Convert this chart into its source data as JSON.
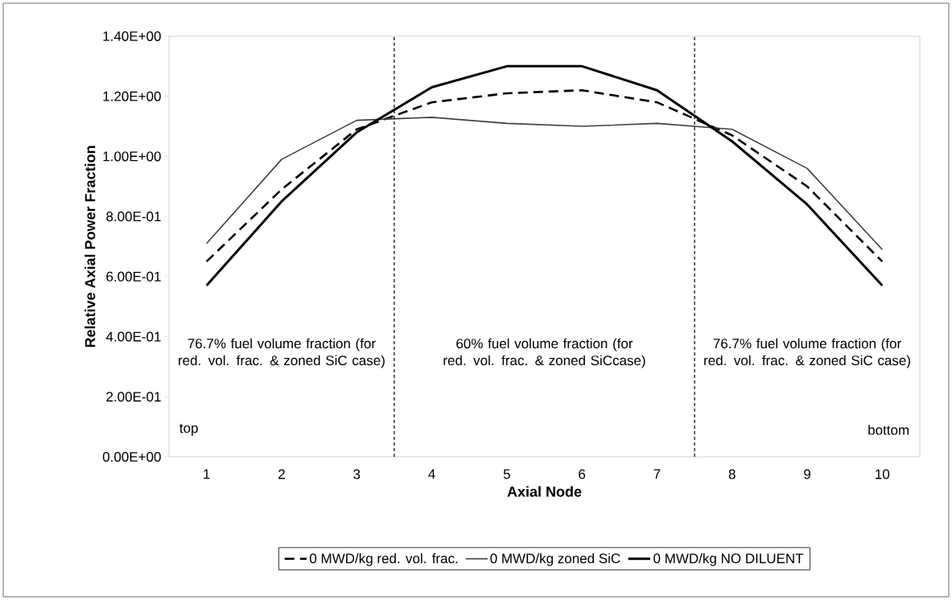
{
  "chart_data": {
    "type": "line",
    "xlabel": "Axial Node",
    "ylabel": "Relative Axial Power Fraction",
    "x": [
      1,
      2,
      3,
      4,
      5,
      6,
      7,
      8,
      9,
      10
    ],
    "xlim": [
      0.5,
      10.5
    ],
    "xticks": [
      1,
      2,
      3,
      4,
      5,
      6,
      7,
      8,
      9,
      10
    ],
    "ylim": [
      0,
      1.4
    ],
    "yticks": [
      {
        "value": 0,
        "label": "0.00E+00"
      },
      {
        "value": 0.2,
        "label": "2.00E-01"
      },
      {
        "value": 0.4,
        "label": "4.00E-01"
      },
      {
        "value": 0.6,
        "label": "6.00E-01"
      },
      {
        "value": 0.8,
        "label": "8.00E-01"
      },
      {
        "value": 1.0,
        "label": "1.00E+00"
      },
      {
        "value": 1.2,
        "label": "1.20E+00"
      },
      {
        "value": 1.4,
        "label": "1.40E+00"
      }
    ],
    "series": [
      {
        "name": "0 MWD/kg red. vol. frac.",
        "color": "#000000",
        "line_style": "dashed",
        "values": [
          0.65,
          0.89,
          1.09,
          1.18,
          1.21,
          1.22,
          1.18,
          1.07,
          0.9,
          0.65
        ]
      },
      {
        "name": "0 MWD/kg zoned SiC",
        "color": "#404040",
        "line_style": "solid",
        "values": [
          0.71,
          0.99,
          1.12,
          1.13,
          1.11,
          1.1,
          1.11,
          1.09,
          0.96,
          0.69
        ]
      },
      {
        "name": "0 MWD/kg NO DILUENT",
        "color": "#000000",
        "line_style": "solid",
        "values": [
          0.57,
          0.85,
          1.08,
          1.23,
          1.3,
          1.3,
          1.22,
          1.05,
          0.84,
          0.57
        ]
      }
    ],
    "ref_lines": [
      {
        "axis": "x",
        "value": 3.5,
        "line_style": "dashed"
      },
      {
        "axis": "x",
        "value": 7.5,
        "line_style": "dashed"
      }
    ],
    "annotations": [
      "76.7% fuel volume fraction (for red. vol. frac. & zoned SiC case)",
      "60% fuel volume fraction (for red. vol. frac. & zoned SiCcase)",
      "76.7% fuel volume fraction (for red. vol. frac. & zoned SiC case)",
      "top",
      "bottom"
    ],
    "grid": false,
    "marker": "none",
    "legend": "bottom"
  }
}
